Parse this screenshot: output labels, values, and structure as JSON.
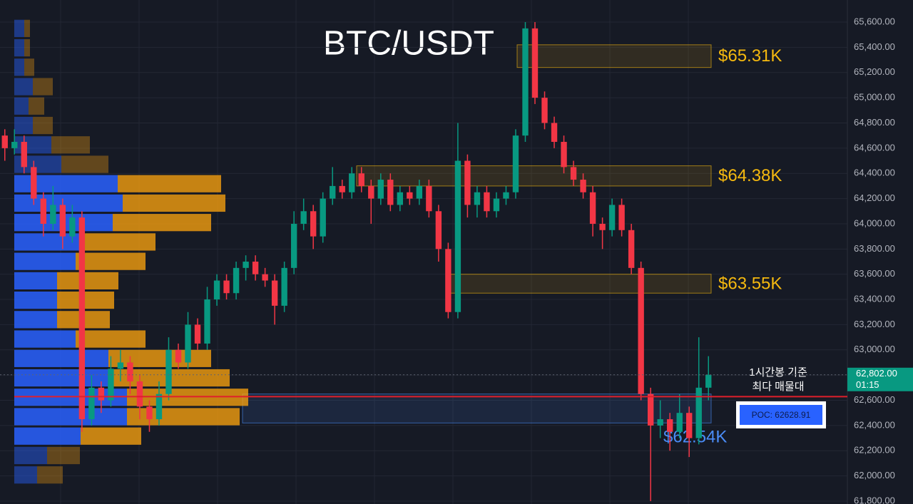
{
  "chart_data": {
    "type": "candlestick",
    "title": "BTC/USDT",
    "ylim": [
      61800,
      65600
    ],
    "yticks": [
      {
        "value": 65600,
        "label": "65,600.00"
      },
      {
        "value": 65400,
        "label": "65,400.00"
      },
      {
        "value": 65200,
        "label": "65,200.00"
      },
      {
        "value": 65000,
        "label": "65,000.00"
      },
      {
        "value": 64800,
        "label": "64,800.00"
      },
      {
        "value": 64600,
        "label": "64,600.00"
      },
      {
        "value": 64400,
        "label": "64,400.00"
      },
      {
        "value": 64200,
        "label": "64,200.00"
      },
      {
        "value": 64000,
        "label": "64,000.00"
      },
      {
        "value": 63800,
        "label": "63,800.00"
      },
      {
        "value": 63600,
        "label": "63,600.00"
      },
      {
        "value": 63400,
        "label": "63,400.00"
      },
      {
        "value": 63200,
        "label": "63,200.00"
      },
      {
        "value": 63000,
        "label": "63,000.00"
      },
      {
        "value": 62800,
        "label": "62,800.00"
      },
      {
        "value": 62600,
        "label": "62,600.00"
      },
      {
        "value": 62400,
        "label": "62,400.00"
      },
      {
        "value": 62200,
        "label": "62,200.00"
      },
      {
        "value": 62000,
        "label": "62,000.00"
      },
      {
        "value": 61800,
        "label": "61,800.00"
      }
    ],
    "up_color": "#089981",
    "down_color": "#f23645",
    "candles": [
      [
        64700,
        64750,
        64500,
        64600
      ],
      [
        64600,
        64750,
        64550,
        64650
      ],
      [
        64650,
        64700,
        64400,
        64450
      ],
      [
        64450,
        64500,
        64150,
        64200
      ],
      [
        64200,
        64250,
        63900,
        64000
      ],
      [
        64000,
        64300,
        63950,
        64150
      ],
      [
        64150,
        64200,
        63800,
        63900
      ],
      [
        63900,
        64150,
        63850,
        64050
      ],
      [
        64050,
        64100,
        62350,
        62450
      ],
      [
        62450,
        62800,
        62400,
        62700
      ],
      [
        62700,
        62750,
        62500,
        62600
      ],
      [
        62600,
        62950,
        62550,
        62850
      ],
      [
        62850,
        63000,
        62750,
        62900
      ],
      [
        62900,
        62950,
        62650,
        62750
      ],
      [
        62750,
        62800,
        62450,
        62550
      ],
      [
        62550,
        62600,
        62350,
        62450
      ],
      [
        62450,
        62750,
        62400,
        62650
      ],
      [
        62650,
        63100,
        62600,
        63000
      ],
      [
        63000,
        63050,
        62850,
        62900
      ],
      [
        62900,
        63300,
        62850,
        63200
      ],
      [
        63200,
        63250,
        63000,
        63050
      ],
      [
        63050,
        63500,
        63000,
        63400
      ],
      [
        63400,
        63600,
        63350,
        63550
      ],
      [
        63550,
        63600,
        63400,
        63450
      ],
      [
        63450,
        63700,
        63400,
        63650
      ],
      [
        63650,
        63750,
        63550,
        63700
      ],
      [
        63700,
        63750,
        63550,
        63600
      ],
      [
        63600,
        63650,
        63500,
        63550
      ],
      [
        63550,
        63600,
        63200,
        63350
      ],
      [
        63350,
        63700,
        63300,
        63650
      ],
      [
        63650,
        64100,
        63600,
        64000
      ],
      [
        64000,
        64200,
        63950,
        64100
      ],
      [
        64100,
        64150,
        63800,
        63900
      ],
      [
        63900,
        64250,
        63850,
        64200
      ],
      [
        64200,
        64450,
        64150,
        64300
      ],
      [
        64300,
        64350,
        64200,
        64250
      ],
      [
        64250,
        64450,
        64200,
        64400
      ],
      [
        64400,
        64450,
        64250,
        64300
      ],
      [
        64300,
        64350,
        64000,
        64200
      ],
      [
        64200,
        64400,
        64150,
        64350
      ],
      [
        64350,
        64400,
        64100,
        64150
      ],
      [
        64150,
        64300,
        64100,
        64250
      ],
      [
        64250,
        64300,
        64150,
        64200
      ],
      [
        64200,
        64350,
        64150,
        64300
      ],
      [
        64300,
        64350,
        64050,
        64100
      ],
      [
        64100,
        64150,
        63700,
        63800
      ],
      [
        63800,
        63850,
        63250,
        63300
      ],
      [
        63300,
        64800,
        63250,
        64500
      ],
      [
        64500,
        64550,
        64050,
        64150
      ],
      [
        64150,
        64300,
        64050,
        64250
      ],
      [
        64250,
        64300,
        64050,
        64100
      ],
      [
        64100,
        64250,
        64050,
        64200
      ],
      [
        64200,
        64300,
        64150,
        64250
      ],
      [
        64250,
        64750,
        64200,
        64700
      ],
      [
        64700,
        65600,
        64650,
        65550
      ],
      [
        65550,
        65600,
        64950,
        65000
      ],
      [
        65000,
        65050,
        64750,
        64800
      ],
      [
        64800,
        64850,
        64600,
        64650
      ],
      [
        64650,
        64700,
        64400,
        64450
      ],
      [
        64450,
        64500,
        64300,
        64350
      ],
      [
        64350,
        64400,
        64200,
        64250
      ],
      [
        64250,
        64300,
        63900,
        64000
      ],
      [
        64000,
        64050,
        63800,
        63950
      ],
      [
        63950,
        64200,
        63900,
        64150
      ],
      [
        64150,
        64200,
        63900,
        63950
      ],
      [
        63950,
        64000,
        63600,
        63650
      ],
      [
        63650,
        63700,
        62600,
        62650
      ],
      [
        62650,
        62700,
        61800,
        62400
      ],
      [
        62400,
        62600,
        62300,
        62450
      ],
      [
        62450,
        62500,
        62200,
        62350
      ],
      [
        62350,
        62650,
        62300,
        62500
      ],
      [
        62500,
        62550,
        62150,
        62300
      ],
      [
        62300,
        63100,
        62250,
        62700
      ],
      [
        62700,
        62950,
        62600,
        62802
      ]
    ],
    "profile": {
      "levels": [
        65550,
        65396,
        65242,
        65088,
        64934,
        64780,
        64626,
        64472,
        64318,
        64164,
        64010,
        63856,
        63702,
        63548,
        63394,
        63240,
        63086,
        62932,
        62778,
        62624,
        62470,
        62316,
        62162,
        62008
      ],
      "buy": [
        14,
        14,
        14,
        26,
        20,
        26,
        52,
        66,
        145,
        152,
        138,
        92,
        86,
        60,
        60,
        60,
        86,
        132,
        133,
        158,
        158,
        93,
        46,
        32
      ],
      "sell": [
        8,
        8,
        14,
        28,
        22,
        28,
        54,
        66,
        145,
        144,
        138,
        106,
        98,
        86,
        80,
        74,
        98,
        144,
        169,
        170,
        158,
        85,
        46,
        36
      ],
      "buy_color": "#2962ff",
      "sell_color": "#f29d0f"
    },
    "zones": [
      {
        "label": "$65.31K",
        "low": 65240,
        "high": 65420,
        "color": "#f5b90f"
      },
      {
        "label": "$64.38K",
        "low": 64300,
        "high": 64460,
        "color": "#f5b90f"
      },
      {
        "label": "$63.55K",
        "low": 63450,
        "high": 63600,
        "color": "#f5b90f"
      },
      {
        "label": "$62.54K",
        "low": 62420,
        "high": 62650,
        "color": "#4a8cf7"
      }
    ],
    "poc": {
      "value": 62628.91,
      "label": "POC: 62628.91"
    },
    "poc_note": [
      "1시간봉 기준",
      "최다 매물대"
    ],
    "last_price": {
      "value": 62802,
      "label": "62,802.00"
    },
    "countdown": "01:15"
  }
}
